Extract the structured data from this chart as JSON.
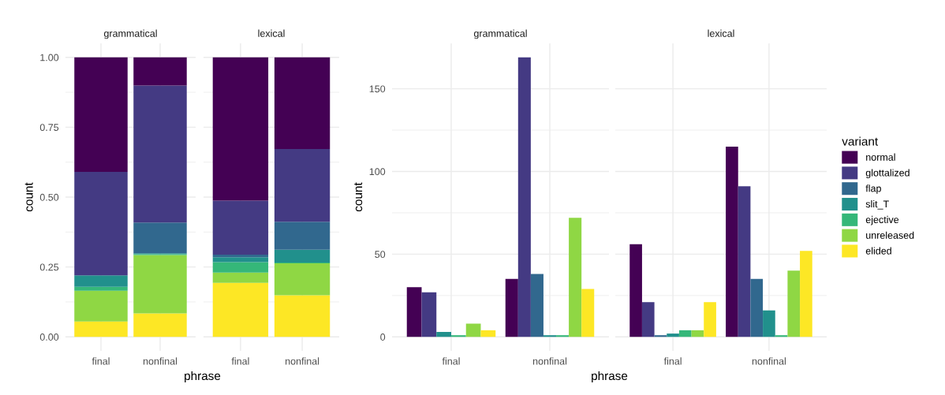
{
  "chart_data": [
    {
      "type": "bar",
      "title": "grammatical",
      "ylabel": "count",
      "xlabel": "phrase",
      "stacked": true,
      "categories": [
        "final",
        "nonfinal"
      ],
      "ylim": [
        -0.05,
        1.05
      ],
      "yticks": [
        {
          "value": 0,
          "label": "0.00"
        },
        {
          "value": 0.25,
          "label": "0.25"
        },
        {
          "value": 0.5,
          "label": "0.50"
        },
        {
          "value": 0.75,
          "label": "0.75"
        },
        {
          "value": 1,
          "label": "1.00"
        }
      ],
      "grid": true,
      "series": [
        {
          "color": "#fde725",
          "values": [
            0.055,
            0.084
          ]
        },
        {
          "color": "#8fd744",
          "values": [
            0.11,
            0.209
          ]
        },
        {
          "color": "#35b779",
          "values": [
            0.014,
            0.003
          ]
        },
        {
          "color": "#21908c",
          "values": [
            0.041,
            0.003
          ]
        },
        {
          "color": "#31688e",
          "values": [
            null,
            0.11
          ]
        },
        {
          "color": "#443a83",
          "values": [
            0.37,
            0.49
          ]
        },
        {
          "color": "#440154",
          "values": [
            0.41,
            0.101
          ]
        }
      ]
    },
    {
      "type": "bar",
      "title": "lexical",
      "stacked": true,
      "categories": [
        "final",
        "nonfinal"
      ],
      "ylim": [
        -0.05,
        1.05
      ],
      "yticks": [
        0,
        0.25,
        0.5,
        0.75,
        1
      ],
      "tick_labels": "x",
      "grid": true,
      "series": [
        {
          "color": "#fde725",
          "values": [
            0.193,
            0.149
          ]
        },
        {
          "color": "#8fd744",
          "values": [
            0.037,
            0.114
          ]
        },
        {
          "color": "#35b779",
          "values": [
            0.037,
            0.003
          ]
        },
        {
          "color": "#21908c",
          "values": [
            0.018,
            0.046
          ]
        },
        {
          "color": "#31688e",
          "values": [
            0.009,
            0.1
          ]
        },
        {
          "color": "#443a83",
          "values": [
            0.193,
            0.26
          ]
        },
        {
          "color": "#440154",
          "values": [
            0.513,
            0.328
          ]
        }
      ]
    },
    {
      "type": "bar",
      "title": "grammatical",
      "ylabel": "count",
      "xlabel": "phrase",
      "categories": [
        "final",
        "nonfinal"
      ],
      "ylim": [
        -8.45,
        177.45
      ],
      "yticks": [
        0,
        50,
        100,
        150
      ],
      "grid": true,
      "series": [
        {
          "color": "#440154",
          "values": [
            30,
            35
          ]
        },
        {
          "color": "#443a83",
          "values": [
            27,
            169
          ]
        },
        {
          "color": "#31688e",
          "values": [
            null,
            38
          ]
        },
        {
          "color": "#21908c",
          "values": [
            3,
            1
          ]
        },
        {
          "color": "#35b779",
          "values": [
            1,
            1
          ]
        },
        {
          "color": "#8fd744",
          "values": [
            8,
            72
          ]
        },
        {
          "color": "#fde725",
          "values": [
            4,
            29
          ]
        }
      ]
    },
    {
      "type": "bar",
      "title": "lexical",
      "categories": [
        "final",
        "nonfinal"
      ],
      "ylim": [
        -8.45,
        177.45
      ],
      "yticks": [
        0,
        50,
        100,
        150
      ],
      "tick_labels": "x",
      "grid": true,
      "legend": "right",
      "legend_title": "variant",
      "series": [
        {
          "name": "normal",
          "color": "#440154",
          "values": [
            56,
            115
          ]
        },
        {
          "name": "glottalized",
          "color": "#443a83",
          "values": [
            21,
            91
          ]
        },
        {
          "name": "flap",
          "color": "#31688e",
          "values": [
            1,
            35
          ]
        },
        {
          "name": "slit_T",
          "color": "#21908c",
          "values": [
            2,
            16
          ]
        },
        {
          "name": "ejective",
          "color": "#35b779",
          "values": [
            4,
            1
          ]
        },
        {
          "name": "unreleased",
          "color": "#8fd744",
          "values": [
            4,
            40
          ]
        },
        {
          "name": "elided",
          "color": "#fde725",
          "values": [
            21,
            52
          ]
        }
      ]
    }
  ]
}
